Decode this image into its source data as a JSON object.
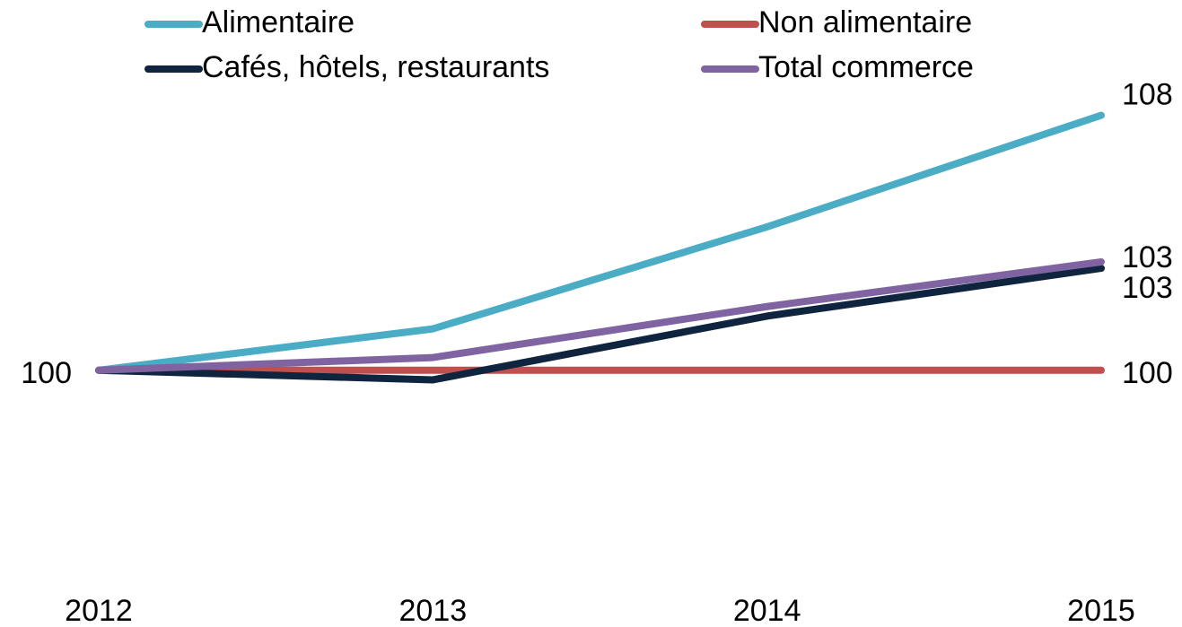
{
  "chart_data": {
    "type": "line",
    "categories": [
      "2012",
      "2013",
      "2014",
      "2015"
    ],
    "series": [
      {
        "name": "Alimentaire",
        "color": "#4bacc6",
        "values": [
          100,
          101.3,
          104.5,
          108.0
        ],
        "value_labels": [
          null,
          null,
          null,
          "108"
        ]
      },
      {
        "name": "Non alimentaire",
        "color": "#c0504d",
        "values": [
          100,
          100,
          100,
          100
        ],
        "value_labels": [
          "100",
          null,
          null,
          "100"
        ]
      },
      {
        "name": "Cafés, hôtels, restaurants",
        "color": "#0f243e",
        "values": [
          100,
          99.7,
          101.7,
          103.2
        ],
        "value_labels": [
          null,
          null,
          null,
          "103"
        ]
      },
      {
        "name": "Total commerce",
        "color": "#8064a2",
        "values": [
          100,
          100.4,
          102.0,
          103.4
        ],
        "value_labels": [
          null,
          null,
          null,
          "103"
        ]
      }
    ],
    "ylim": [
      94,
      109
    ],
    "grid": false,
    "legend": "top"
  }
}
